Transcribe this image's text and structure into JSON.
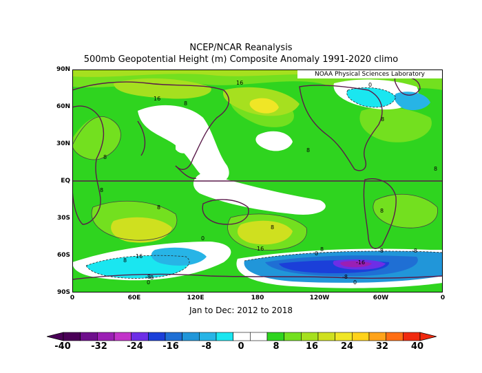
{
  "title_line1": "NCEP/NCAR Reanalysis",
  "title_line2": "500mb Geopotential Height (m) Composite Anomaly 1991-2020 climo",
  "credit": "NOAA Physical Sciences Laboratory",
  "subtitle": "Jan to Dec: 2012 to 2018",
  "lat_labels": [
    "90N",
    "60N",
    "30N",
    "EQ",
    "30S",
    "60S",
    "90S"
  ],
  "lon_labels": [
    "0",
    "60E",
    "120E",
    "180",
    "120W",
    "60W",
    "0"
  ],
  "contour_labels": {
    "a": "16",
    "b": "16",
    "c": "8",
    "d": "8",
    "e": "8",
    "f": "8",
    "g": "8",
    "h": "8",
    "i": "8",
    "j": "8",
    "k": "8",
    "l": "0",
    "m": "16",
    "n": "8",
    "o": "8",
    "p": "16",
    "q": "-8",
    "r": "-8",
    "s": "0",
    "t": "-16",
    "u": "-8",
    "v": "0",
    "w": "8",
    "x": "-8",
    "y": "0",
    "z": "0"
  },
  "colorbar": {
    "labels": [
      "-40",
      "-32",
      "-24",
      "-16",
      "-8",
      "0",
      "8",
      "16",
      "24",
      "32",
      "40"
    ],
    "colors": [
      "#4a0057",
      "#6e0f8c",
      "#9b1fb4",
      "#c233c9",
      "#6d2ee6",
      "#1b3fd9",
      "#1f6fd4",
      "#2196d9",
      "#27b4e6",
      "#1ae6f0",
      "#ffffff",
      "#ffffff",
      "#2fd41f",
      "#73e01f",
      "#a6e01f",
      "#cfe01f",
      "#f0e626",
      "#ffd21a",
      "#ffa31a",
      "#ff6e14",
      "#f02a0f"
    ]
  }
}
